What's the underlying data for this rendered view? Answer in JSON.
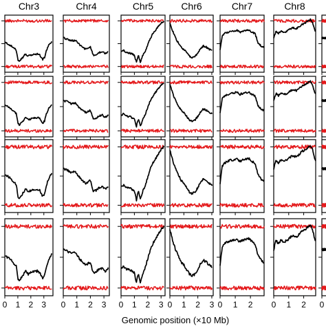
{
  "chart_data": {
    "type": "line",
    "title": "",
    "xlabel": "Genomic position (×10 Mb)",
    "ylabel": "",
    "grid": false,
    "columns": [
      {
        "name": "Chr3",
        "xticks": [
          1,
          2,
          3
        ],
        "xlim": [
          0,
          3.7
        ],
        "tick_labels": [
          "0",
          "1",
          "2",
          "3"
        ]
      },
      {
        "name": "Chr4",
        "xticks": [
          1,
          2,
          3
        ],
        "xlim": [
          0,
          3.4
        ],
        "tick_labels": [
          "0",
          "1",
          "2",
          "3"
        ]
      },
      {
        "name": "Chr5",
        "xticks": [
          1,
          2,
          3
        ],
        "xlim": [
          0,
          3.3
        ],
        "tick_labels": [
          "0",
          "1",
          "2",
          "3"
        ]
      },
      {
        "name": "Chr6",
        "xticks": [
          1,
          2,
          3
        ],
        "xlim": [
          0,
          3.1
        ],
        "tick_labels": [
          "0",
          "1",
          "2",
          "3"
        ]
      },
      {
        "name": "Chr7",
        "xticks": [
          1,
          2
        ],
        "xlim": [
          0,
          2.9
        ],
        "tick_labels": [
          "0",
          "1",
          "2"
        ]
      },
      {
        "name": "Chr8",
        "xticks": [
          1,
          2
        ],
        "xlim": [
          0,
          2.8
        ],
        "tick_labels": [
          "0",
          "1",
          "2"
        ]
      },
      {
        "name": "",
        "xticks": [],
        "xlim": [
          0,
          2.8
        ],
        "tick_labels": [
          "0"
        ]
      }
    ],
    "y_scale": "relative (0 bottom to 1 top)",
    "profiles": {
      "Chr3": {
        "x": [
          0,
          0.3,
          0.6,
          0.9,
          1.0,
          1.1,
          1.3,
          1.6,
          1.8,
          2.0,
          2.2,
          2.5,
          2.7,
          2.9,
          3.05,
          3.2,
          3.4,
          3.6
        ],
        "y": [
          0.52,
          0.49,
          0.44,
          0.38,
          0.22,
          0.2,
          0.24,
          0.32,
          0.28,
          0.3,
          0.31,
          0.32,
          0.3,
          0.22,
          0.26,
          0.38,
          0.48,
          0.54
        ]
      },
      "Chr4": {
        "x": [
          0,
          0.3,
          0.6,
          0.9,
          1.2,
          1.5,
          1.7,
          2.0,
          2.2,
          2.4,
          2.6,
          2.9,
          3.1,
          3.3
        ],
        "y": [
          0.6,
          0.58,
          0.55,
          0.56,
          0.48,
          0.42,
          0.4,
          0.44,
          0.3,
          0.3,
          0.34,
          0.36,
          0.32,
          0.36
        ]
      },
      "Chr5": {
        "x": [
          0,
          0.2,
          0.4,
          0.6,
          0.8,
          1.0,
          1.15,
          1.3,
          1.45,
          1.6,
          1.8,
          2.0,
          2.2,
          2.4,
          2.6,
          2.8,
          3.0,
          3.2
        ],
        "y": [
          0.36,
          0.38,
          0.34,
          0.34,
          0.32,
          0.3,
          0.17,
          0.3,
          0.17,
          0.28,
          0.36,
          0.48,
          0.6,
          0.68,
          0.74,
          0.8,
          0.86,
          0.9
        ]
      },
      "Chr6": {
        "x": [
          0,
          0.2,
          0.4,
          0.6,
          0.8,
          1.0,
          1.2,
          1.4,
          1.6,
          1.8,
          2.0,
          2.2,
          2.4,
          2.6,
          2.8,
          3.0
        ],
        "y": [
          0.86,
          0.72,
          0.6,
          0.52,
          0.44,
          0.4,
          0.34,
          0.28,
          0.26,
          0.28,
          0.34,
          0.42,
          0.46,
          0.44,
          0.4,
          0.38
        ]
      },
      "Chr7": {
        "x": [
          0,
          0.15,
          0.3,
          0.5,
          0.7,
          0.9,
          1.1,
          1.3,
          1.5,
          1.7,
          1.9,
          2.1,
          2.3,
          2.5,
          2.7,
          2.85
        ],
        "y": [
          0.4,
          0.64,
          0.68,
          0.7,
          0.72,
          0.72,
          0.74,
          0.7,
          0.72,
          0.73,
          0.74,
          0.7,
          0.68,
          0.52,
          0.46,
          0.44
        ]
      },
      "Chr8": {
        "x": [
          0,
          0.15,
          0.3,
          0.5,
          0.7,
          0.9,
          1.1,
          1.3,
          1.5,
          1.7,
          1.9,
          2.1,
          2.3,
          2.45,
          2.6,
          2.75
        ],
        "y": [
          0.6,
          0.72,
          0.68,
          0.72,
          0.7,
          0.72,
          0.76,
          0.78,
          0.76,
          0.8,
          0.84,
          0.86,
          0.9,
          0.92,
          0.86,
          0.72
        ]
      },
      "": {
        "x": [
          0,
          0.5
        ],
        "y": [
          0.6,
          0.6
        ]
      }
    },
    "red_band_top": 0.9,
    "red_band_bottom": 0.1,
    "rows": 4
  }
}
